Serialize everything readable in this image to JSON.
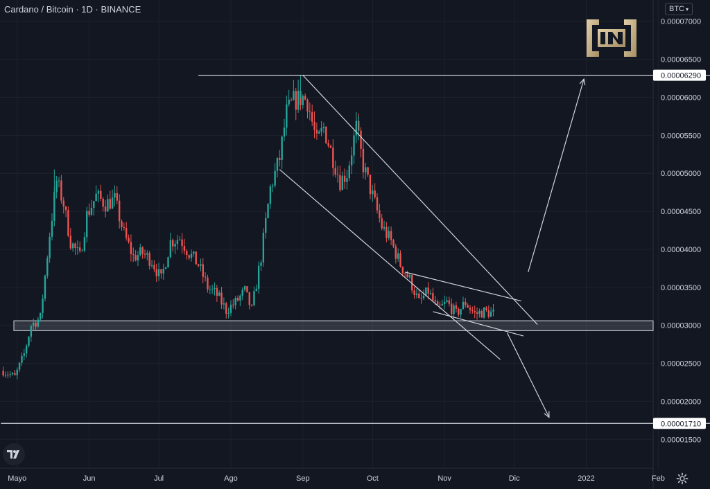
{
  "header": {
    "title": "Cardano / Bitcoin · 1D · BINANCE",
    "currency": "BTC"
  },
  "icons": {
    "logo": "beincrypto-logo-icon",
    "tradingview": "tradingview-logo-icon",
    "settings": "gear-icon",
    "dropdown": "chevron-down-icon"
  },
  "colors": {
    "background": "#131722",
    "up": "#26a69a",
    "down": "#ef5350",
    "lines": "#d1d4dc",
    "grid": "#1e222d",
    "axis_text": "#d1d4dc",
    "logo_gold": "#c9b28a"
  },
  "price_labels": {
    "upper_target": "0.00006290",
    "lower_target": "0.00001710"
  },
  "chart_data": {
    "type": "candlestick",
    "title": "Cardano / Bitcoin · 1D · BINANCE",
    "x_ticks": [
      "Mayo",
      "Jun",
      "Jul",
      "Ago",
      "Sep",
      "Oct",
      "Nov",
      "Dic",
      "2022",
      "Feb"
    ],
    "y_ticks": [
      "0.00007000",
      "0.00006500",
      "0.00006000",
      "0.00005500",
      "0.00005000",
      "0.00004500",
      "0.00004000",
      "0.00003500",
      "0.00003000",
      "0.00002500",
      "0.00002000",
      "0.00001500"
    ],
    "y_tick_values": [
      7e-05,
      6.5e-05,
      6e-05,
      5.5e-05,
      5e-05,
      4.5e-05,
      4e-05,
      3.5e-05,
      3e-05,
      2.5e-05,
      2e-05,
      1.5e-05
    ],
    "ylim": [
      1.12e-05,
      7.28e-05
    ],
    "highlighted_levels": [
      6.29e-05,
      1.71e-05
    ],
    "support_zone": [
      2.93e-05,
      3.06e-05
    ],
    "price_path": [
      [
        "2021-04-25",
        2.4e-05
      ],
      [
        "2021-04-30",
        2.32e-05
      ],
      [
        "2021-05-04",
        2.62e-05
      ],
      [
        "2021-05-07",
        3e-05
      ],
      [
        "2021-05-11",
        3.1e-05
      ],
      [
        "2021-05-15",
        4.2e-05
      ],
      [
        "2021-05-18",
        4.9e-05
      ],
      [
        "2021-05-21",
        4.6e-05
      ],
      [
        "2021-05-24",
        4.1e-05
      ],
      [
        "2021-05-28",
        3.9e-05
      ],
      [
        "2021-05-31",
        4.45e-05
      ],
      [
        "2021-06-04",
        4.7e-05
      ],
      [
        "2021-06-08",
        4.6e-05
      ],
      [
        "2021-06-12",
        4.65e-05
      ],
      [
        "2021-06-16",
        4.2e-05
      ],
      [
        "2021-06-20",
        3.9e-05
      ],
      [
        "2021-06-24",
        3.95e-05
      ],
      [
        "2021-06-28",
        3.85e-05
      ],
      [
        "2021-07-02",
        3.6e-05
      ],
      [
        "2021-07-06",
        4.1e-05
      ],
      [
        "2021-07-10",
        4.15e-05
      ],
      [
        "2021-07-14",
        3.95e-05
      ],
      [
        "2021-07-18",
        3.8e-05
      ],
      [
        "2021-07-22",
        3.5e-05
      ],
      [
        "2021-07-26",
        3.4e-05
      ],
      [
        "2021-07-30",
        3.2e-05
      ],
      [
        "2021-08-03",
        3.3e-05
      ],
      [
        "2021-08-07",
        3.45e-05
      ],
      [
        "2021-08-10",
        3.2e-05
      ],
      [
        "2021-08-14",
        3.9e-05
      ],
      [
        "2021-08-18",
        4.8e-05
      ],
      [
        "2021-08-22",
        5.2e-05
      ],
      [
        "2021-08-25",
        5.8e-05
      ],
      [
        "2021-08-28",
        5.95e-05
      ],
      [
        "2021-09-01",
        6e-05
      ],
      [
        "2021-09-03",
        5.95e-05
      ],
      [
        "2021-09-07",
        5.4e-05
      ],
      [
        "2021-09-10",
        5.6e-05
      ],
      [
        "2021-09-13",
        5.3e-05
      ],
      [
        "2021-09-17",
        4.9e-05
      ],
      [
        "2021-09-20",
        5e-05
      ],
      [
        "2021-09-24",
        5.6e-05
      ],
      [
        "2021-09-27",
        5.1e-05
      ],
      [
        "2021-10-01",
        4.7e-05
      ],
      [
        "2021-10-05",
        4.3e-05
      ],
      [
        "2021-10-09",
        4.1e-05
      ],
      [
        "2021-10-13",
        3.8e-05
      ],
      [
        "2021-10-17",
        3.6e-05
      ],
      [
        "2021-10-21",
        3.3e-05
      ],
      [
        "2021-10-25",
        3.45e-05
      ],
      [
        "2021-10-29",
        3.2e-05
      ],
      [
        "2021-11-02",
        3.3e-05
      ],
      [
        "2021-11-06",
        3.15e-05
      ],
      [
        "2021-11-10",
        3.3e-05
      ],
      [
        "2021-11-14",
        3.15e-05
      ],
      [
        "2021-11-18",
        3.18e-05
      ],
      [
        "2021-11-23",
        3.15e-05
      ]
    ],
    "wick_spikes": [
      [
        "2021-05-17",
        5.05e-05
      ],
      [
        "2021-08-31",
        6.29e-05
      ],
      [
        "2021-09-25",
        5.75e-05
      ]
    ],
    "trendlines": [
      {
        "name": "channel-upper",
        "from": [
          "2021-09-01",
          6.29e-05
        ],
        "to": [
          "2021-12-11",
          3.01e-05
        ]
      },
      {
        "name": "channel-lower",
        "from": [
          "2021-08-22",
          5.05e-05
        ],
        "to": [
          "2021-11-25",
          2.55e-05
        ]
      },
      {
        "name": "wedge-top",
        "from": [
          "2021-10-15",
          3.7e-05
        ],
        "to": [
          "2021-12-04",
          3.32e-05
        ]
      },
      {
        "name": "wedge-bottom",
        "from": [
          "2021-10-27",
          3.18e-05
        ],
        "to": [
          "2021-12-05",
          2.86e-05
        ]
      },
      {
        "name": "resistance-line",
        "from": [
          "2021-07-18",
          6.29e-05
        ],
        "to": [
          "2022-02-24",
          6.29e-05
        ]
      },
      {
        "name": "support-line",
        "from": [
          "2021-04-24",
          1.71e-05
        ],
        "to": [
          "2022-02-24",
          1.71e-05
        ]
      }
    ],
    "arrows": [
      {
        "name": "bullish-arrow",
        "from": [
          "2021-12-07",
          3.7e-05
        ],
        "to": [
          "2021-12-31",
          6.24e-05
        ]
      },
      {
        "name": "bearish-arrow",
        "from": [
          "2021-11-28",
          2.9e-05
        ],
        "to": [
          "2021-12-16",
          1.79e-05
        ]
      }
    ]
  }
}
